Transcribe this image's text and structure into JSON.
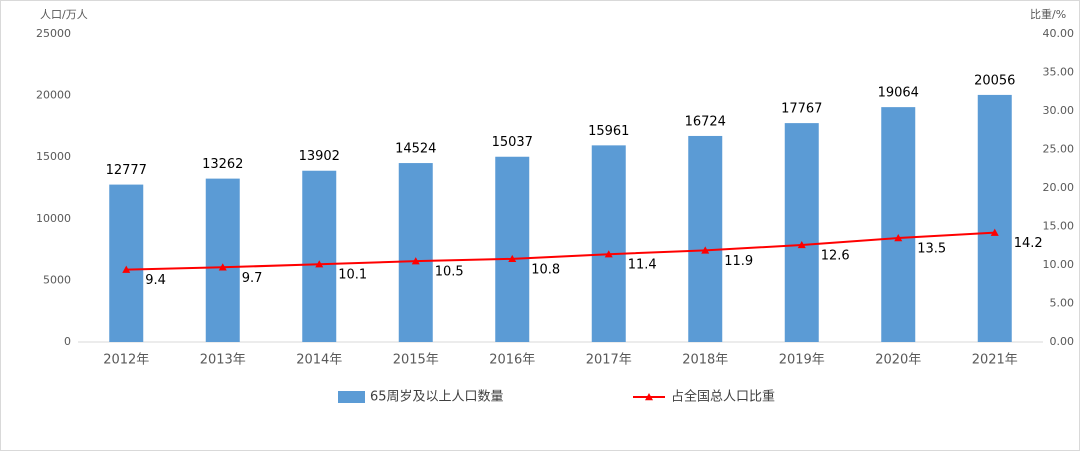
{
  "chart_data": {
    "type": "bar",
    "y_axis_label": "人口/万人",
    "y2_axis_label": "比重/%",
    "categories": [
      "2012年",
      "2013年",
      "2014年",
      "2015年",
      "2016年",
      "2017年",
      "2018年",
      "2019年",
      "2020年",
      "2021年"
    ],
    "series": [
      {
        "name": "65周岁及以上人口数量",
        "type": "bar",
        "color": "#5b9bd5",
        "values": [
          12777,
          13262,
          13902,
          14524,
          15037,
          15961,
          16724,
          17767,
          19064,
          20056
        ]
      },
      {
        "name": "占全国总人口比重",
        "type": "line",
        "axis": "y2",
        "color": "#ff0000",
        "marker": "triangle",
        "values": [
          9.4,
          9.7,
          10.1,
          10.5,
          10.8,
          11.4,
          11.9,
          12.6,
          13.5,
          14.2
        ]
      }
    ],
    "ylim": [
      0,
      25000
    ],
    "yticks": [
      0,
      5000,
      10000,
      15000,
      20000,
      25000
    ],
    "y2lim": [
      0,
      40
    ],
    "y2ticks": [
      {
        "value": 0,
        "label": "0.00"
      },
      {
        "value": 5,
        "label": "5.00"
      },
      {
        "value": 10,
        "label": "10.00"
      },
      {
        "value": 15,
        "label": "15.00"
      },
      {
        "value": 20,
        "label": "20.00"
      },
      {
        "value": 25,
        "label": "25.00"
      },
      {
        "value": 30,
        "label": "30.00"
      },
      {
        "value": 35,
        "label": "35.00"
      },
      {
        "value": 40,
        "label": "40.00"
      }
    ],
    "grid": false,
    "legend": "bottom"
  }
}
